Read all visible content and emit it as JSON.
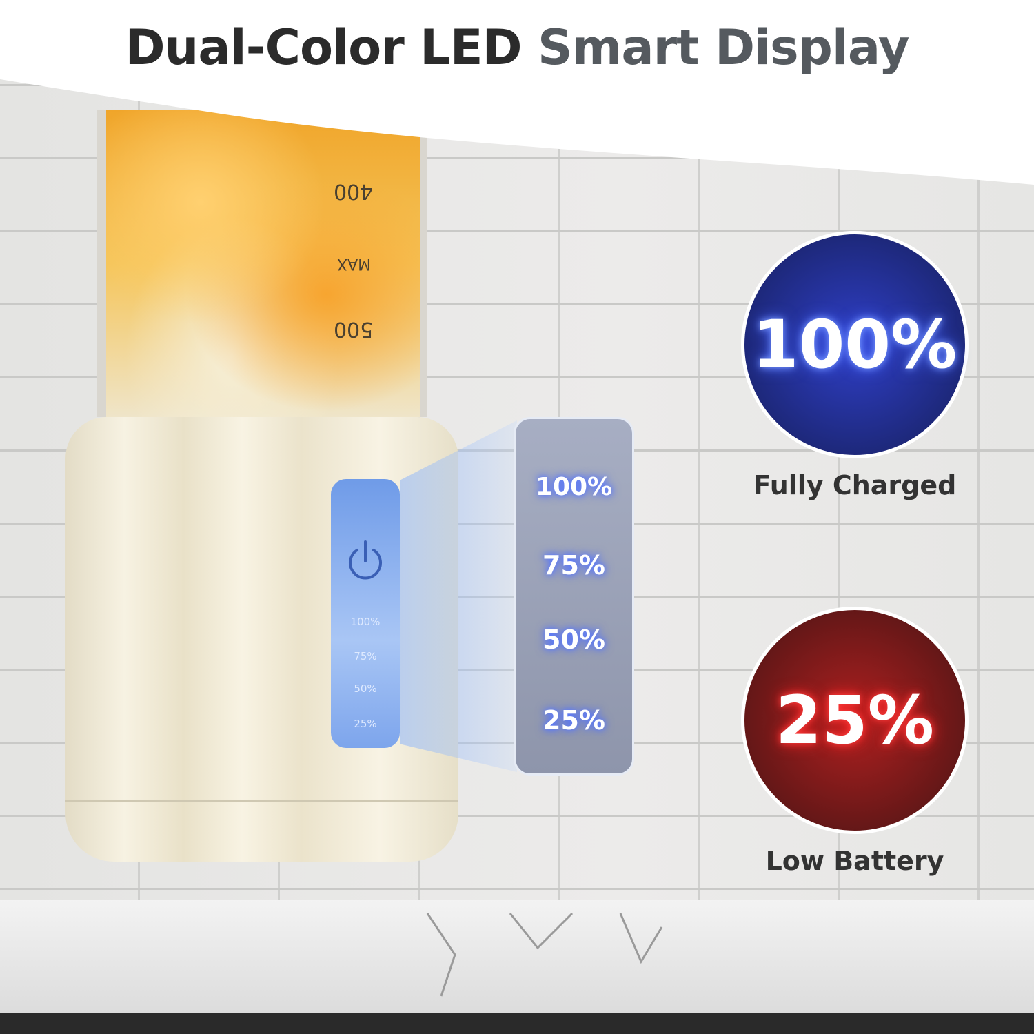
{
  "header": {
    "title_dark": "Dual-Color LED",
    "title_light": "Smart Display"
  },
  "cup_markings": [
    "400",
    "MAX",
    "500"
  ],
  "device_panel": {
    "icon": "power-icon",
    "levels": [
      "100%",
      "75%",
      "50%",
      "25%"
    ]
  },
  "zoomed_panel": {
    "levels": [
      "100%",
      "75%",
      "50%",
      "25%"
    ],
    "glow_color": "#4060ff"
  },
  "indicators": [
    {
      "value": "100%",
      "label": "Fully Charged",
      "color": "#2f3fc8"
    },
    {
      "value": "25%",
      "label": "Low Battery",
      "color": "#d02020"
    }
  ]
}
